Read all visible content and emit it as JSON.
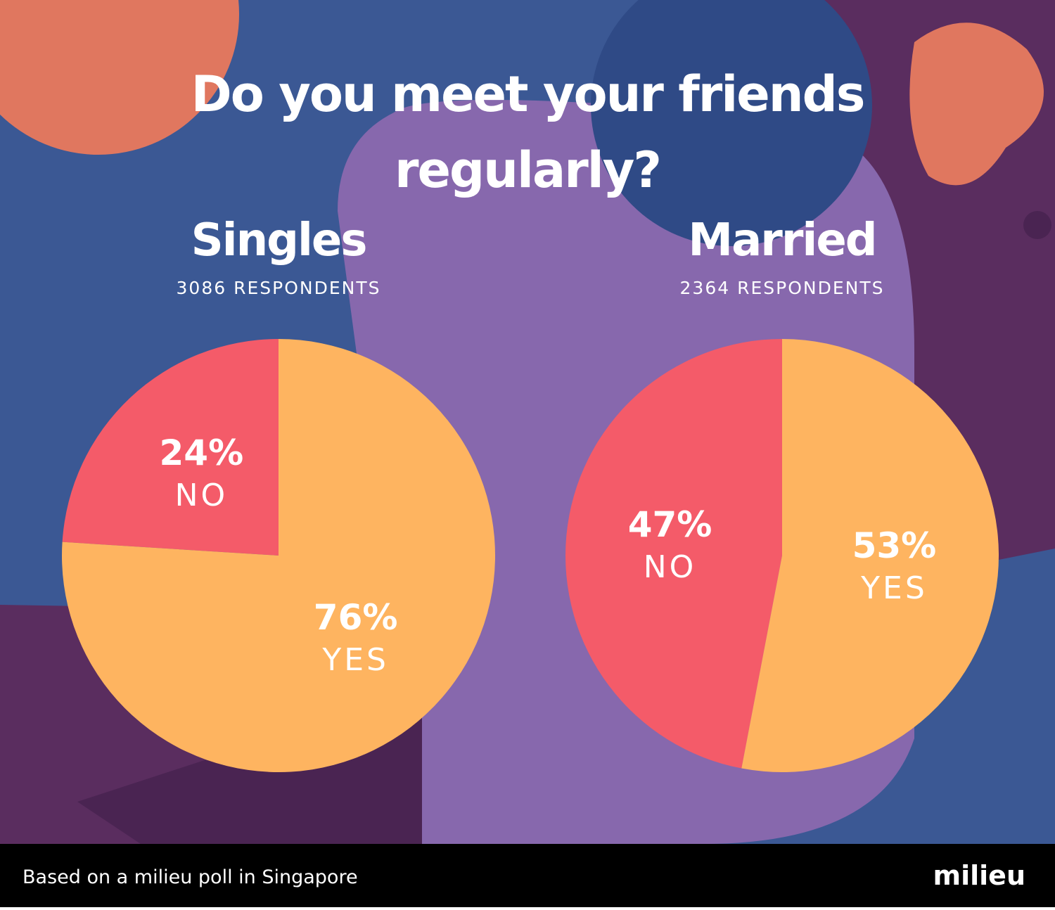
{
  "title": "Do you meet your friends regularly?",
  "chart_data": [
    {
      "type": "pie",
      "title": "Singles",
      "subtitle": "3086 RESPONDENTS",
      "categories": [
        "NO",
        "YES"
      ],
      "values": [
        24,
        76
      ],
      "value_labels": [
        "24%",
        "76%"
      ],
      "colors": [
        "#f45b69",
        "#feb460"
      ]
    },
    {
      "type": "pie",
      "title": "Married",
      "subtitle": "2364 RESPONDENTS",
      "categories": [
        "NO",
        "YES"
      ],
      "values": [
        47,
        53
      ],
      "value_labels": [
        "47%",
        "53%"
      ],
      "colors": [
        "#f45b69",
        "#feb460"
      ]
    }
  ],
  "footer": "Based on a milieu poll in Singapore",
  "brand": "milieu"
}
